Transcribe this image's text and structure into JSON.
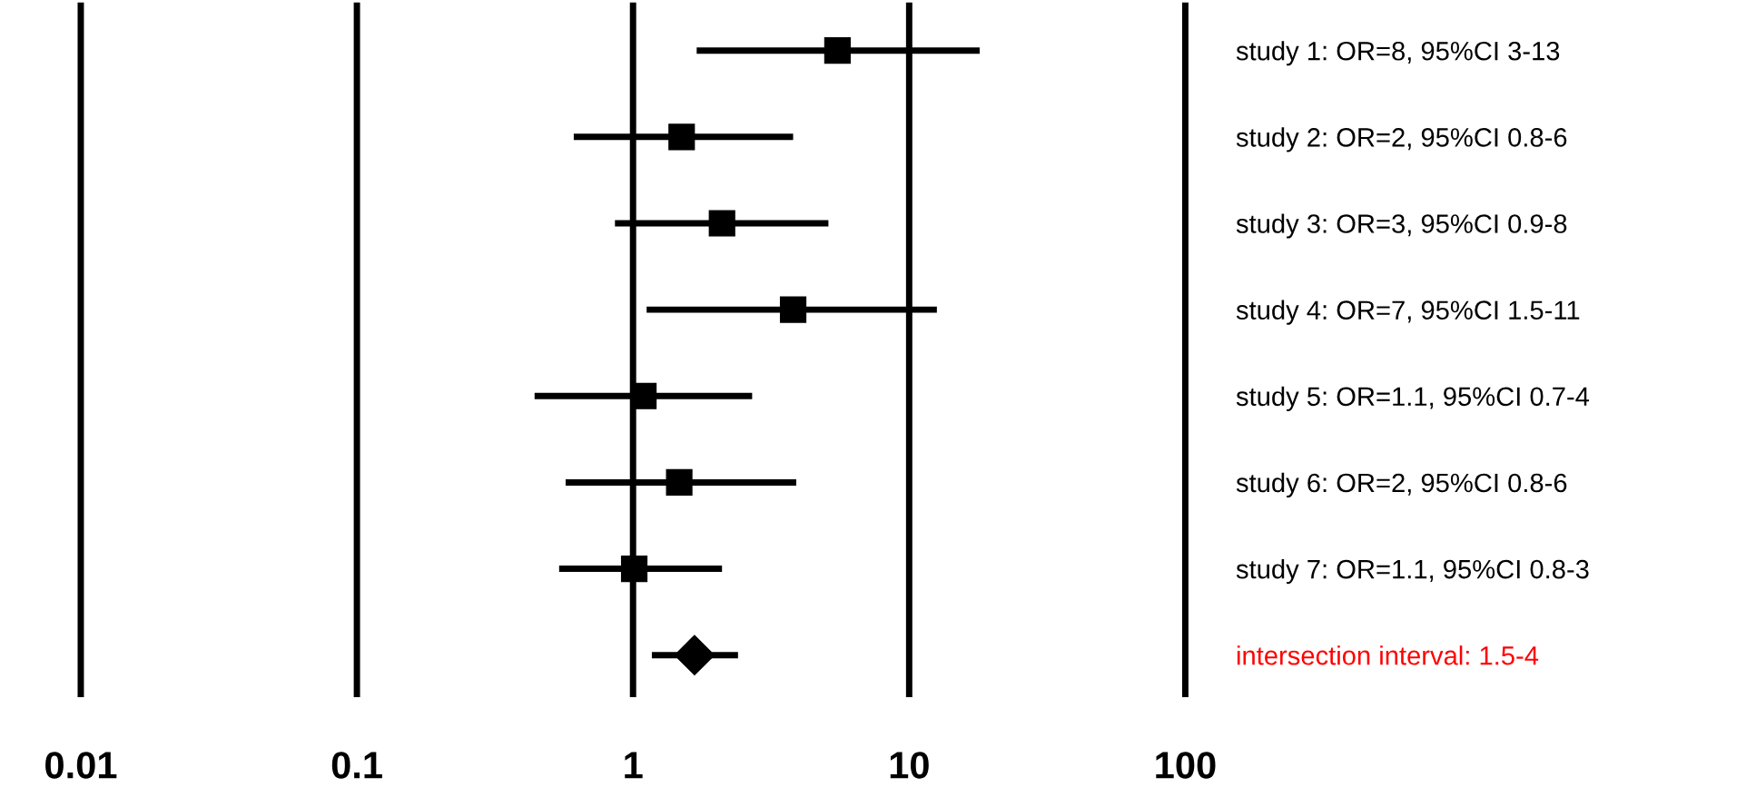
{
  "chart_data": {
    "type": "scatter",
    "orientation": "horizontal",
    "categories": [
      "study 1: OR=8, 95%CI 3-13",
      "study 2: OR=2, 95%CI 0.8-6",
      "study 3: OR=3, 95%CI 0.9-8",
      "study 4: OR=7, 95%CI 1.5-11",
      "study 5: OR=1.1, 95%CI 0.7-4",
      "study 6: OR=2, 95%CI 0.8-6",
      "study 7: OR=1.1, 95%CI 0.8-3",
      "intersection interval: 1.5-4"
    ],
    "series": [
      {
        "color": "#000000",
        "marker": "square",
        "values": [
          5.5,
          1.5,
          2.1,
          3.8,
          1.09,
          1.47,
          1.01,
          null
        ],
        "errors": [
          [
            1.7,
            18
          ],
          [
            0.61,
            3.8
          ],
          [
            0.86,
            5.1
          ],
          [
            1.12,
            12.6
          ],
          [
            0.44,
            2.7
          ],
          [
            0.57,
            3.9
          ],
          [
            0.54,
            2.1
          ],
          null
        ]
      },
      {
        "color": "#000000",
        "marker": "diamond",
        "values": [
          null,
          null,
          null,
          null,
          null,
          null,
          null,
          1.67
        ],
        "errors": [
          null,
          null,
          null,
          null,
          null,
          null,
          null,
          [
            1.17,
            2.4
          ]
        ]
      }
    ],
    "log": "x",
    "xlim": [
      0.01,
      100
    ],
    "xticks": [
      0.01,
      0.1,
      1,
      10,
      100
    ],
    "grid": "x",
    "legend": false
  }
}
